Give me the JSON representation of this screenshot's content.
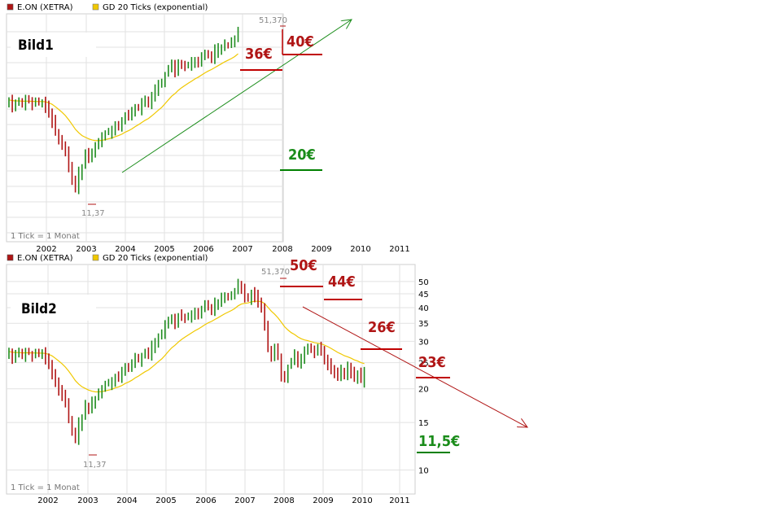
{
  "colors": {
    "up": "#1e8c1e",
    "down": "#b01515",
    "ma": "#f0c800",
    "grid": "#e2e2e2",
    "red_mark": "#c00000",
    "green_mark": "#008000",
    "label_red": "#b01515",
    "label_green": "#1a8c1a"
  },
  "chart_data": [
    {
      "type": "candlestick",
      "instrument": "E.ON (XETRA)",
      "indicator": "GD 20 Ticks (exponential)",
      "tick_note": "1 Tick = 1 Monat",
      "panel_label": "Bild1",
      "x_ticks": [
        "2002",
        "2003",
        "2004",
        "2005",
        "2006",
        "2007",
        "2008",
        "2009",
        "2010",
        "2011"
      ],
      "high_label": "51,370",
      "low_label": "11,37",
      "price_tags": [
        "36€",
        "40€",
        "20€"
      ],
      "closes": [
        27.5,
        25.8,
        26.6,
        27.2,
        26.4,
        27.4,
        27.2,
        26.8,
        27.1,
        26.8,
        27.2,
        26.3,
        24.8,
        23.1,
        20.9,
        19.8,
        18.9,
        17.6,
        15.6,
        13.8,
        12.8,
        14.9,
        15.7,
        17.4,
        17.2,
        17.8,
        18.4,
        19.5,
        19.9,
        20.8,
        21.1,
        21.3,
        22.3,
        22.0,
        22.9,
        24.3,
        23.7,
        24.6,
        25.9,
        25.8,
        26.7,
        27.2,
        26.8,
        28.9,
        30.3,
        31.1,
        31.5,
        34.2,
        35.8,
        36.7,
        35.0,
        37.5,
        37.0,
        36.6,
        37.3,
        37.6,
        38.5,
        38.1,
        39.6,
        40.5,
        40.4,
        39.8,
        41.8,
        42.2,
        43.1,
        44.0,
        43.4,
        44.3,
        45.8,
        49.5
      ]
    },
    {
      "type": "candlestick",
      "instrument": "E.ON (XETRA)",
      "indicator": "GD 20 Ticks (exponential)",
      "tick_note": "1 Tick = 1 Monat",
      "panel_label": "Bild2",
      "x_ticks": [
        "2002",
        "2003",
        "2004",
        "2005",
        "2006",
        "2007",
        "2008",
        "2009",
        "2010",
        "2011"
      ],
      "y_ticks": [
        "50",
        "45",
        "40",
        "35",
        "30",
        "25",
        "20",
        "15",
        "10"
      ],
      "y_tick_values": [
        50,
        45,
        40,
        35,
        30,
        25,
        20,
        15,
        10
      ],
      "ylim": [
        8,
        53
      ],
      "high_label": "51,370",
      "low_label": "11,37",
      "price_tags": [
        "50€",
        "44€",
        "26€",
        "23€",
        "11,5€"
      ],
      "closes": [
        27.5,
        25.8,
        26.6,
        27.2,
        26.4,
        27.4,
        27.2,
        26.8,
        27.1,
        26.8,
        27.2,
        26.3,
        24.8,
        23.1,
        20.9,
        19.8,
        18.9,
        17.6,
        15.6,
        13.8,
        12.8,
        14.9,
        15.7,
        17.4,
        17.2,
        17.8,
        18.4,
        19.5,
        19.9,
        20.8,
        21.1,
        21.3,
        22.3,
        22.0,
        22.9,
        24.3,
        23.7,
        24.6,
        25.9,
        25.8,
        26.7,
        27.2,
        26.8,
        28.9,
        30.3,
        31.1,
        31.5,
        34.2,
        35.8,
        36.7,
        35.0,
        37.5,
        37.0,
        36.6,
        37.3,
        37.6,
        38.5,
        38.1,
        39.6,
        40.5,
        40.4,
        39.8,
        41.8,
        42.2,
        43.1,
        44.0,
        43.4,
        44.3,
        45.8,
        49.5,
        47.0,
        44.0,
        43.2,
        45.5,
        44.2,
        42.5,
        40.8,
        34.5,
        28.0,
        26.5,
        28.2,
        26.0,
        22.4,
        21.5,
        24.1,
        25.2,
        27.0,
        24.8,
        26.3,
        27.3,
        28.3,
        27.6,
        27.0,
        28.5,
        27.9,
        26.1,
        25.0,
        24.1,
        23.3,
        22.8,
        23.4,
        22.7,
        24.0,
        23.1,
        22.1,
        23.0,
        21.6,
        22.9
      ]
    }
  ]
}
